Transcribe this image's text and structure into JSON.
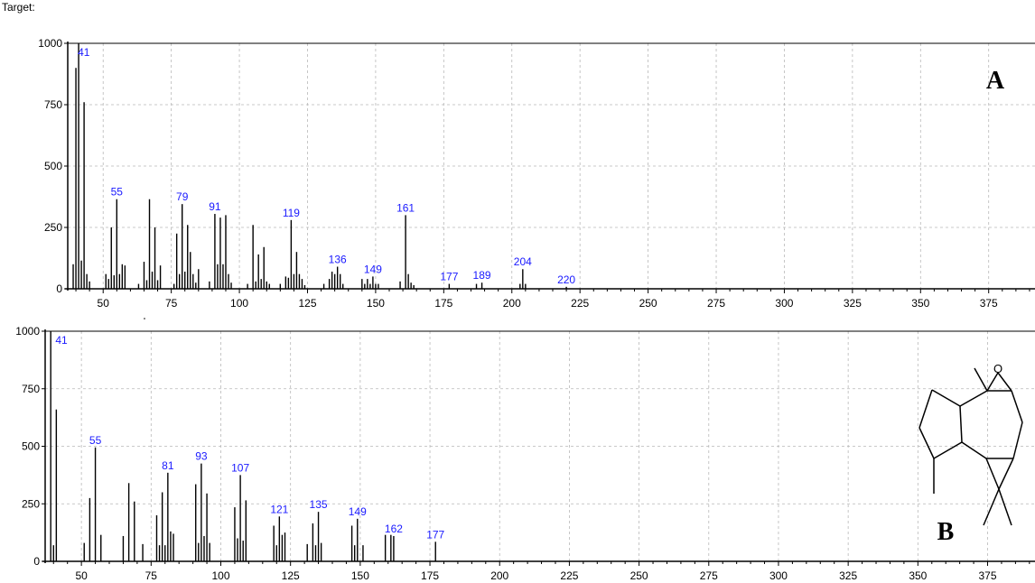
{
  "header": {
    "title": "Target:"
  },
  "chart_data": [
    {
      "type": "bar",
      "panel_label": "A",
      "x_range": [
        37,
        392
      ],
      "y_range": [
        0,
        1000
      ],
      "x_ticks": [
        50,
        75,
        100,
        125,
        150,
        175,
        200,
        225,
        250,
        275,
        300,
        325,
        350,
        375
      ],
      "y_ticks": [
        0,
        250,
        500,
        750,
        1000
      ],
      "grid": true,
      "points": [
        [
          39,
          100
        ],
        [
          40,
          900
        ],
        [
          41,
          1000
        ],
        [
          42,
          115
        ],
        [
          43,
          760
        ],
        [
          44,
          60
        ],
        [
          45,
          30
        ],
        [
          51,
          60
        ],
        [
          52,
          40
        ],
        [
          53,
          250
        ],
        [
          54,
          55
        ],
        [
          55,
          365
        ],
        [
          56,
          60
        ],
        [
          57,
          100
        ],
        [
          58,
          95
        ],
        [
          63,
          20
        ],
        [
          65,
          110
        ],
        [
          66,
          35
        ],
        [
          67,
          365
        ],
        [
          68,
          70
        ],
        [
          69,
          250
        ],
        [
          70,
          35
        ],
        [
          71,
          95
        ],
        [
          76,
          20
        ],
        [
          77,
          225
        ],
        [
          78,
          60
        ],
        [
          79,
          345
        ],
        [
          80,
          70
        ],
        [
          81,
          260
        ],
        [
          82,
          150
        ],
        [
          83,
          60
        ],
        [
          84,
          25
        ],
        [
          85,
          80
        ],
        [
          89,
          30
        ],
        [
          91,
          305
        ],
        [
          92,
          100
        ],
        [
          93,
          290
        ],
        [
          94,
          100
        ],
        [
          95,
          300
        ],
        [
          96,
          60
        ],
        [
          97,
          25
        ],
        [
          103,
          20
        ],
        [
          105,
          260
        ],
        [
          106,
          30
        ],
        [
          107,
          140
        ],
        [
          108,
          40
        ],
        [
          109,
          170
        ],
        [
          110,
          30
        ],
        [
          111,
          20
        ],
        [
          115,
          20
        ],
        [
          117,
          50
        ],
        [
          118,
          45
        ],
        [
          119,
          280
        ],
        [
          120,
          60
        ],
        [
          121,
          150
        ],
        [
          122,
          60
        ],
        [
          123,
          40
        ],
        [
          124,
          15
        ],
        [
          131,
          20
        ],
        [
          133,
          40
        ],
        [
          134,
          70
        ],
        [
          135,
          60
        ],
        [
          136,
          90
        ],
        [
          137,
          60
        ],
        [
          138,
          20
        ],
        [
          145,
          40
        ],
        [
          146,
          20
        ],
        [
          147,
          40
        ],
        [
          148,
          20
        ],
        [
          149,
          50
        ],
        [
          150,
          20
        ],
        [
          151,
          20
        ],
        [
          159,
          30
        ],
        [
          161,
          300
        ],
        [
          162,
          60
        ],
        [
          163,
          25
        ],
        [
          164,
          15
        ],
        [
          177,
          20
        ],
        [
          187,
          20
        ],
        [
          189,
          25
        ],
        [
          203,
          20
        ],
        [
          204,
          80
        ],
        [
          205,
          20
        ],
        [
          220,
          8
        ]
      ],
      "labels": [
        {
          "x": 41,
          "y": 1000,
          "text": "41"
        },
        {
          "x": 55,
          "y": 365,
          "text": "55"
        },
        {
          "x": 79,
          "y": 345,
          "text": "79"
        },
        {
          "x": 91,
          "y": 305,
          "text": "91"
        },
        {
          "x": 119,
          "y": 280,
          "text": "119"
        },
        {
          "x": 136,
          "y": 90,
          "text": "136"
        },
        {
          "x": 149,
          "y": 50,
          "text": "149"
        },
        {
          "x": 161,
          "y": 300,
          "text": "161"
        },
        {
          "x": 177,
          "y": 20,
          "text": "177"
        },
        {
          "x": 189,
          "y": 25,
          "text": "189"
        },
        {
          "x": 204,
          "y": 80,
          "text": "204"
        },
        {
          "x": 220,
          "y": 8,
          "text": "220"
        }
      ]
    },
    {
      "type": "bar",
      "panel_label": "B",
      "x_range": [
        37,
        392
      ],
      "y_range": [
        0,
        1000
      ],
      "x_ticks": [
        50,
        75,
        100,
        125,
        150,
        175,
        200,
        225,
        250,
        275,
        300,
        325,
        350,
        375
      ],
      "y_ticks": [
        0,
        250,
        500,
        750,
        1000
      ],
      "grid": true,
      "points": [
        [
          39,
          1000
        ],
        [
          40,
          70
        ],
        [
          41,
          660
        ],
        [
          51,
          80
        ],
        [
          53,
          275
        ],
        [
          55,
          495
        ],
        [
          57,
          115
        ],
        [
          65,
          110
        ],
        [
          67,
          340
        ],
        [
          69,
          260
        ],
        [
          72,
          75
        ],
        [
          77,
          200
        ],
        [
          78,
          70
        ],
        [
          79,
          300
        ],
        [
          80,
          70
        ],
        [
          81,
          385
        ],
        [
          82,
          130
        ],
        [
          83,
          120
        ],
        [
          91,
          335
        ],
        [
          92,
          80
        ],
        [
          93,
          425
        ],
        [
          94,
          110
        ],
        [
          95,
          295
        ],
        [
          96,
          80
        ],
        [
          105,
          235
        ],
        [
          106,
          100
        ],
        [
          107,
          375
        ],
        [
          108,
          90
        ],
        [
          109,
          265
        ],
        [
          119,
          155
        ],
        [
          120,
          70
        ],
        [
          121,
          195
        ],
        [
          122,
          115
        ],
        [
          123,
          125
        ],
        [
          131,
          75
        ],
        [
          133,
          165
        ],
        [
          134,
          70
        ],
        [
          135,
          215
        ],
        [
          136,
          80
        ],
        [
          147,
          155
        ],
        [
          148,
          70
        ],
        [
          149,
          185
        ],
        [
          151,
          70
        ],
        [
          159,
          115
        ],
        [
          161,
          115
        ],
        [
          162,
          110
        ],
        [
          177,
          85
        ]
      ],
      "labels": [
        {
          "x": 41,
          "y": 1000,
          "text": "41"
        },
        {
          "x": 55,
          "y": 495,
          "text": "55"
        },
        {
          "x": 81,
          "y": 385,
          "text": "81"
        },
        {
          "x": 93,
          "y": 425,
          "text": "93"
        },
        {
          "x": 107,
          "y": 375,
          "text": "107"
        },
        {
          "x": 121,
          "y": 195,
          "text": "121"
        },
        {
          "x": 135,
          "y": 215,
          "text": "135"
        },
        {
          "x": 149,
          "y": 185,
          "text": "149"
        },
        {
          "x": 162,
          "y": 110,
          "text": "162"
        },
        {
          "x": 177,
          "y": 85,
          "text": "177"
        }
      ],
      "structure_atom_label": "O"
    }
  ]
}
